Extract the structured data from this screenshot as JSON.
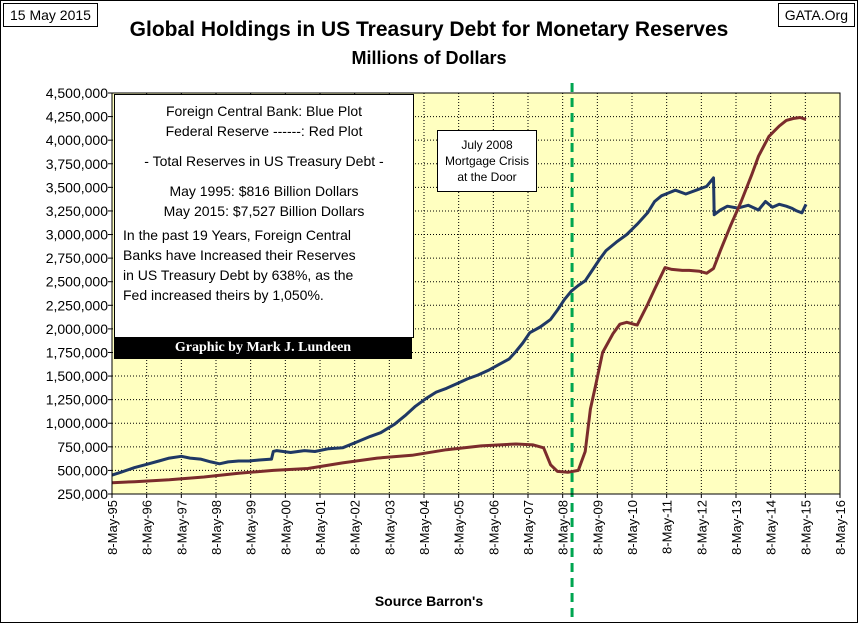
{
  "header": {
    "date": "15 May 2015",
    "site": "GATA.Org"
  },
  "chart_data": {
    "type": "line",
    "title": "Global Holdings in US Treasury Debt for Monetary Reserves",
    "subtitle": "Millions of Dollars",
    "xlabel": "Source Barron's",
    "ylabel": "",
    "xlim": [
      "1995-05-08",
      "2016-05-08"
    ],
    "ylim": [
      250000,
      4500000
    ],
    "y_ticks": [
      250000,
      500000,
      750000,
      1000000,
      1250000,
      1500000,
      1750000,
      2000000,
      2250000,
      2500000,
      2750000,
      3000000,
      3250000,
      3500000,
      3750000,
      4000000,
      4250000,
      4500000
    ],
    "y_tick_labels": [
      "250,000",
      "500,000",
      "750,000",
      "1,000,000",
      "1,250,000",
      "1,500,000",
      "1,750,000",
      "2,000,000",
      "2,250,000",
      "2,500,000",
      "2,750,000",
      "3,000,000",
      "3,250,000",
      "3,500,000",
      "3,750,000",
      "4,000,000",
      "4,250,000",
      "4,500,000"
    ],
    "x_tick_labels": [
      "8-May-95",
      "8-May-96",
      "8-May-97",
      "8-May-98",
      "8-May-99",
      "8-May-00",
      "8-May-01",
      "8-May-02",
      "8-May-03",
      "8-May-04",
      "8-May-05",
      "8-May-06",
      "8-May-07",
      "8-May-08",
      "8-May-09",
      "8-May-10",
      "8-May-11",
      "8-May-12",
      "8-May-13",
      "8-May-14",
      "8-May-15",
      "8-May-16"
    ],
    "grid": true,
    "plot_background": "#ffffc0",
    "series": [
      {
        "name": "Foreign Central Bank",
        "color": "#1f3864",
        "x": [
          1995.35,
          1995.6,
          1996.0,
          1996.3,
          1996.7,
          1997.0,
          1997.35,
          1997.6,
          1997.9,
          1998.2,
          1998.45,
          1998.7,
          1999.0,
          1999.3,
          1999.6,
          1999.95,
          2000.0,
          2000.1,
          2000.5,
          2000.9,
          2001.2,
          2001.6,
          2002.0,
          2002.4,
          2002.8,
          2003.1,
          2003.5,
          2003.8,
          2004.1,
          2004.4,
          2004.7,
          2005.0,
          2005.3,
          2005.6,
          2005.9,
          2006.2,
          2006.5,
          2006.8,
          2007.0,
          2007.2,
          2007.4,
          2007.7,
          2008.0,
          2008.2,
          2008.4,
          2008.6,
          2008.8,
          2009.0,
          2009.2,
          2009.4,
          2009.6,
          2009.9,
          2010.2,
          2010.5,
          2010.8,
          2011.0,
          2011.2,
          2011.4,
          2011.6,
          2011.9,
          2012.2,
          2012.5,
          2012.7,
          2012.72,
          2012.9,
          2013.1,
          2013.4,
          2013.7,
          2014.0,
          2014.2,
          2014.4,
          2014.6,
          2014.8,
          2014.95,
          2015.1,
          2015.25,
          2015.37
        ],
        "values": [
          450000,
          480000,
          530000,
          560000,
          600000,
          630000,
          650000,
          630000,
          620000,
          590000,
          570000,
          590000,
          600000,
          600000,
          610000,
          620000,
          700000,
          710000,
          690000,
          710000,
          700000,
          730000,
          740000,
          800000,
          860000,
          900000,
          990000,
          1080000,
          1180000,
          1260000,
          1330000,
          1370000,
          1420000,
          1470000,
          1510000,
          1560000,
          1620000,
          1680000,
          1760000,
          1850000,
          1960000,
          2020000,
          2100000,
          2200000,
          2310000,
          2400000,
          2460000,
          2510000,
          2620000,
          2730000,
          2830000,
          2920000,
          3000000,
          3110000,
          3230000,
          3350000,
          3410000,
          3440000,
          3470000,
          3430000,
          3470000,
          3510000,
          3600000,
          3210000,
          3260000,
          3300000,
          3280000,
          3310000,
          3260000,
          3350000,
          3290000,
          3320000,
          3300000,
          3280000,
          3250000,
          3230000,
          3320000
        ]
      },
      {
        "name": "Federal Reserve",
        "color": "#7b2c2c",
        "x": [
          1995.35,
          1996.0,
          1997.0,
          1998.0,
          1999.0,
          2000.0,
          2001.0,
          2002.0,
          2003.0,
          2004.0,
          2005.0,
          2006.0,
          2007.0,
          2007.5,
          2007.8,
          2008.0,
          2008.2,
          2008.5,
          2008.8,
          2009.0,
          2009.15,
          2009.3,
          2009.5,
          2009.8,
          2010.0,
          2010.2,
          2010.5,
          2010.8,
          2011.0,
          2011.3,
          2011.5,
          2011.8,
          2012.0,
          2012.3,
          2012.5,
          2012.7,
          2012.9,
          2013.2,
          2013.5,
          2013.8,
          2014.0,
          2014.3,
          2014.6,
          2014.8,
          2015.0,
          2015.2,
          2015.37
        ],
        "values": [
          370000,
          380000,
          400000,
          430000,
          470000,
          500000,
          520000,
          580000,
          630000,
          660000,
          720000,
          760000,
          780000,
          770000,
          740000,
          560000,
          490000,
          480000,
          500000,
          700000,
          1150000,
          1400000,
          1750000,
          1950000,
          2050000,
          2070000,
          2040000,
          2260000,
          2420000,
          2650000,
          2630000,
          2620000,
          2620000,
          2610000,
          2590000,
          2640000,
          2830000,
          3100000,
          3350000,
          3630000,
          3830000,
          4040000,
          4150000,
          4210000,
          4230000,
          4240000,
          4220000
        ]
      }
    ],
    "vline": {
      "x": 2008.62,
      "color": "#00a550"
    },
    "annotation": "July 2008 Mortgage Crisis at the Door"
  },
  "info_box": {
    "line1": "Foreign Central Bank: Blue Plot",
    "line2": "Federal Reserve ------: Red Plot",
    "line3": "- Total Reserves in US Treasury Debt -",
    "line4": "May 1995:   $816 Billion Dollars",
    "line5": "May 2015: $7,527 Billion Dollars",
    "line6": "In the past 19 Years, Foreign Central",
    "line7": "Banks have Increased their Reserves",
    "line8": "in US Treasury Debt by 638%, as the",
    "line9": "Fed increased theirs by 1,050%.",
    "credit": "Graphic by Mark J. Lundeen"
  },
  "annotation_box": {
    "line1": "July 2008",
    "line2": "Mortgage Crisis",
    "line3": "at the Door"
  }
}
